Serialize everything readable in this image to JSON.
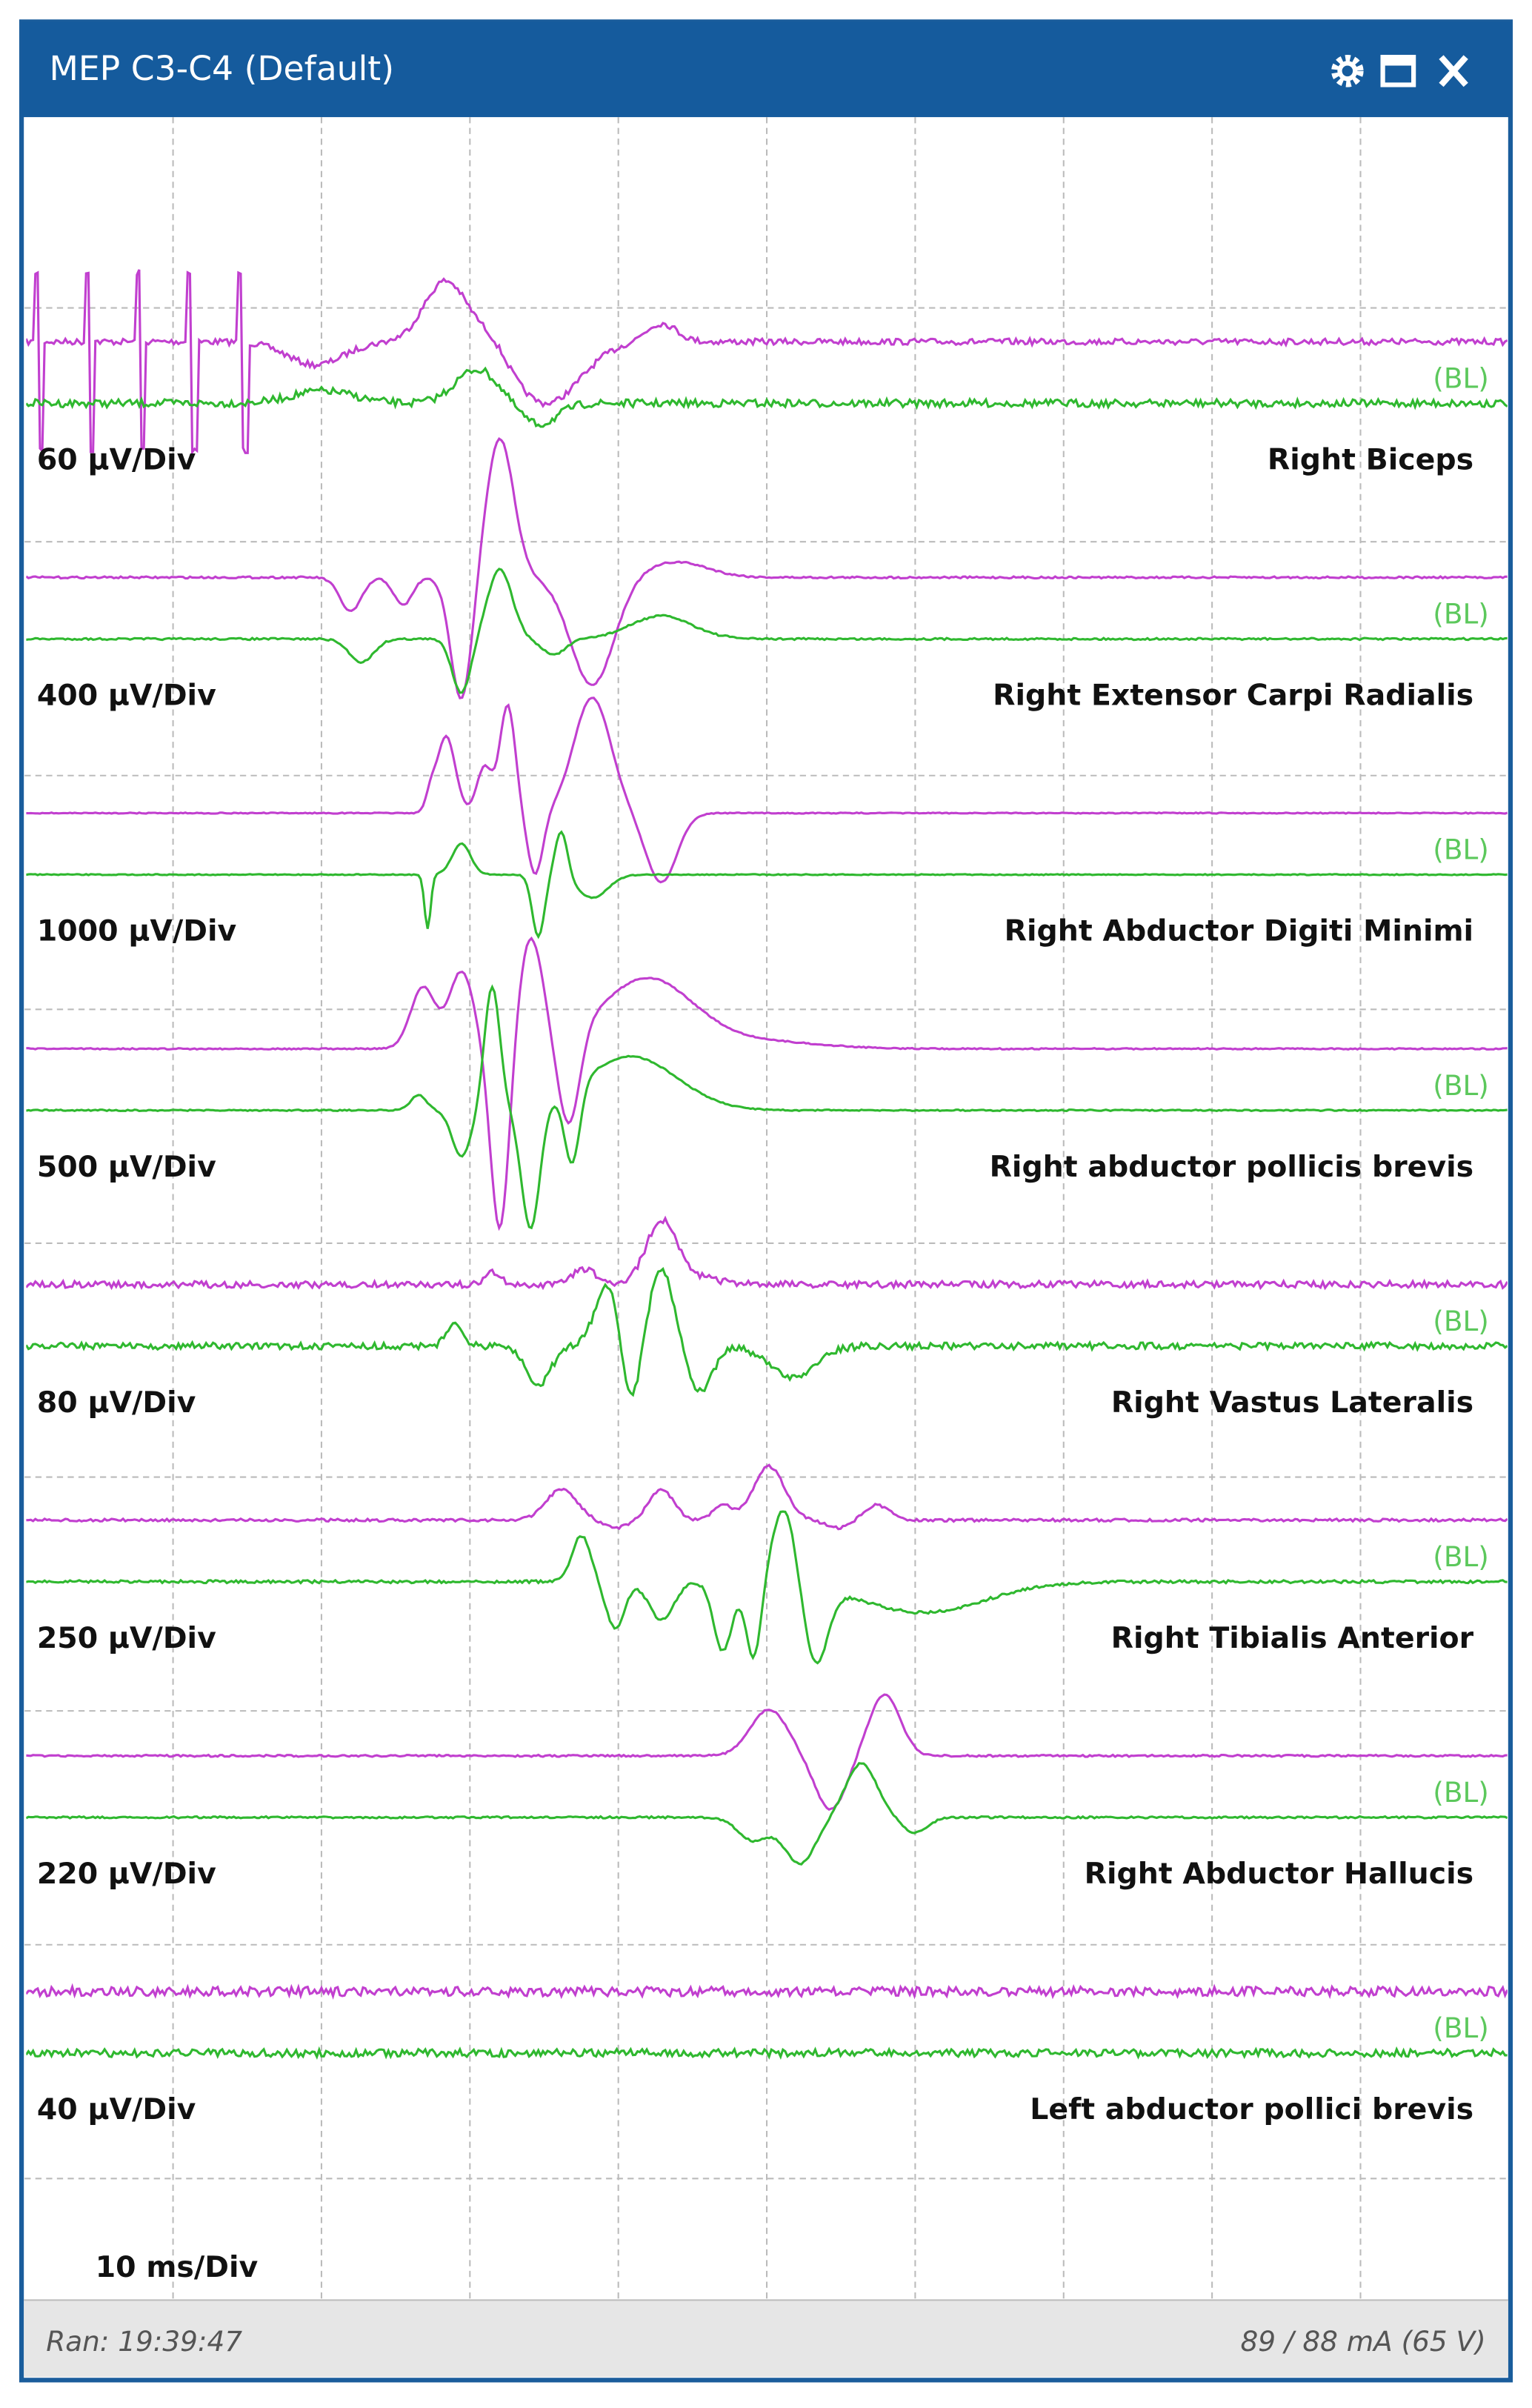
{
  "window": {
    "title": "MEP C3-C4 (Default)"
  },
  "channels": [
    {
      "scale": "60 µV/Div",
      "name": "Right Biceps",
      "baseline": "(BL)"
    },
    {
      "scale": "400 µV/Div",
      "name": "Right Extensor Carpi Radialis",
      "baseline": "(BL)"
    },
    {
      "scale": "1000 µV/Div",
      "name": "Right Abductor Digiti Minimi",
      "baseline": "(BL)"
    },
    {
      "scale": "500 µV/Div",
      "name": "Right abductor pollicis brevis",
      "baseline": "(BL)"
    },
    {
      "scale": "80 µV/Div",
      "name": "Right Vastus Lateralis",
      "baseline": "(BL)"
    },
    {
      "scale": "250 µV/Div",
      "name": "Right Tibialis Anterior",
      "baseline": "(BL)"
    },
    {
      "scale": "220 µV/Div",
      "name": "Right Abductor Hallucis",
      "baseline": "(BL)"
    },
    {
      "scale": "40 µV/Div",
      "name": "Left abductor pollici brevis",
      "baseline": "(BL)"
    }
  ],
  "timebase": "10 ms/Div",
  "footer": {
    "run": "Ran: 19:39:47",
    "stimulus": "89 / 88 mA (65 V)"
  }
}
